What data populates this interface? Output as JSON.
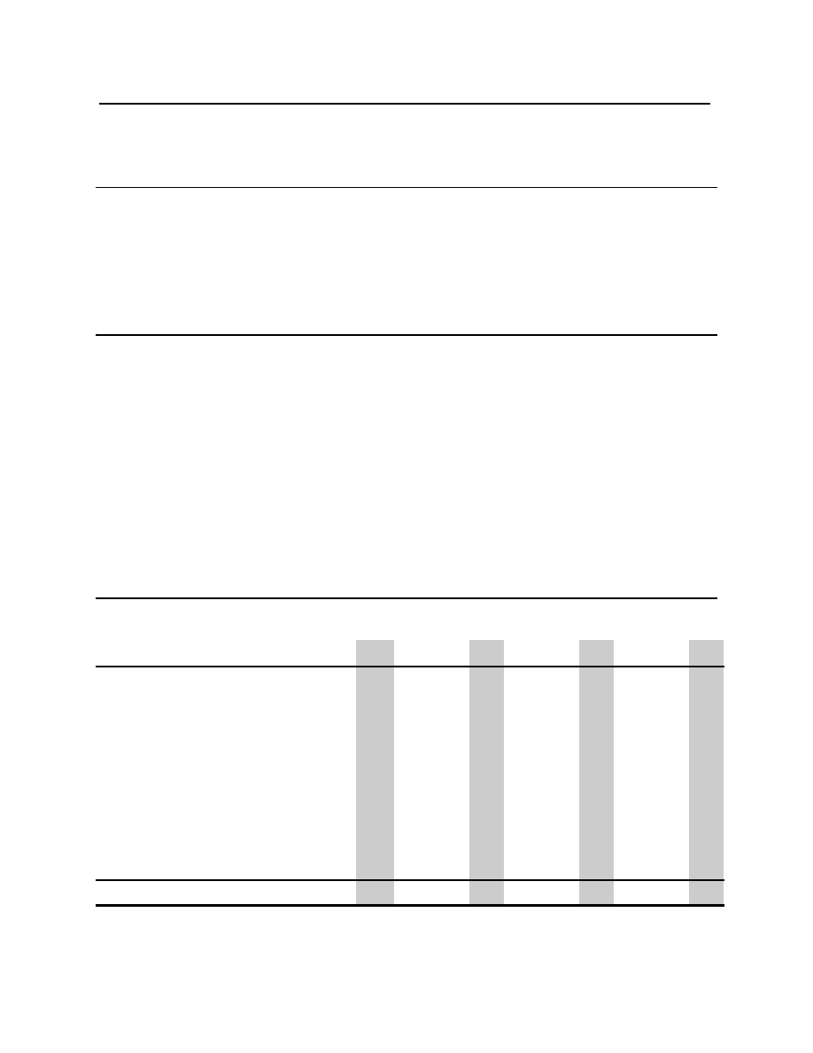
{
  "document": {
    "colors": {
      "rule": "#000000",
      "column_shading": "#cccccc",
      "background": "#ffffff"
    },
    "sections": [
      {
        "id": "header-block"
      },
      {
        "id": "block-2"
      },
      {
        "id": "block-3"
      },
      {
        "id": "table-block"
      }
    ],
    "table": {
      "shaded_column_count": 4
    }
  }
}
